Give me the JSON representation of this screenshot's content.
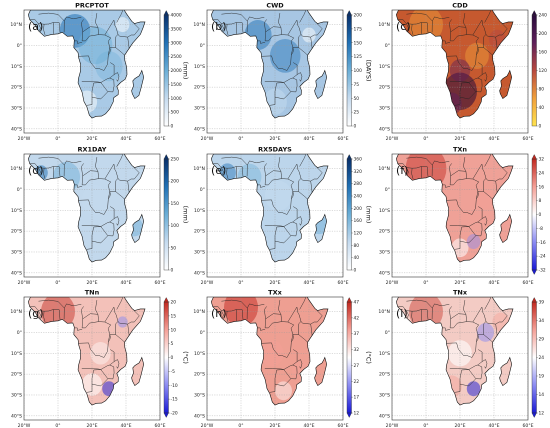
{
  "figure": {
    "lat_ticks": [
      "10°N",
      "0°",
      "10°S",
      "20°S",
      "30°S",
      "40°S"
    ],
    "lon_ticks": [
      "20°W",
      "0°",
      "20°E",
      "40°E",
      "60°E"
    ],
    "panels": [
      {
        "id": "prcptot",
        "title": "PRCPTOT",
        "label": "(a)",
        "unit": "(mm)",
        "colorbar": {
          "ticks": [
            "4000",
            "3500",
            "3000",
            "2500",
            "2000",
            "1500",
            "1000",
            "500",
            "0"
          ],
          "colors": [
            "#ffffff",
            "#c6dbef",
            "#6baed6",
            "#2171b5",
            "#08306b"
          ],
          "extend": "max"
        },
        "land_color": "#a9cae6"
      },
      {
        "id": "cwd",
        "title": "CWD",
        "label": "(b)",
        "unit": "(DAYS)",
        "colorbar": {
          "ticks": [
            "200",
            "175",
            "150",
            "125",
            "100",
            "75",
            "50",
            "25",
            "0"
          ],
          "colors": [
            "#ffffff",
            "#c6dbef",
            "#6baed6",
            "#2171b5",
            "#08306b"
          ],
          "extend": "max"
        },
        "land_color": "#a7c6e3"
      },
      {
        "id": "cdd",
        "title": "CDD",
        "label": "(c)",
        "unit": "(DAYS)",
        "colorbar": {
          "ticks": [
            "240",
            "200",
            "160",
            "120",
            "80",
            "40",
            "0"
          ],
          "colors": [
            "#ffe34d",
            "#f0a03c",
            "#b8493f",
            "#5e1f5a",
            "#2a0a3c"
          ],
          "extend": "max"
        },
        "land_color": "#c6592f"
      },
      {
        "id": "rx1day",
        "title": "RX1DAY",
        "label": "(d)",
        "unit": "(mm)",
        "colorbar": {
          "ticks": [
            "250",
            "200",
            "150",
            "100",
            "50",
            "0"
          ],
          "colors": [
            "#ffffff",
            "#c6dbef",
            "#6baed6",
            "#2171b5",
            "#08306b"
          ],
          "extend": "max"
        },
        "land_color": "#c2d8ec"
      },
      {
        "id": "rx5days",
        "title": "RX5DAYS",
        "label": "(e)",
        "unit": "(mm)",
        "colorbar": {
          "ticks": [
            "360",
            "320",
            "280",
            "240",
            "200",
            "160",
            "120",
            "80",
            "40",
            "0"
          ],
          "colors": [
            "#ffffff",
            "#c6dbef",
            "#6baed6",
            "#2171b5",
            "#08306b"
          ],
          "extend": "max"
        },
        "land_color": "#bcd5eb"
      },
      {
        "id": "txn",
        "title": "TXn",
        "label": "(f)",
        "unit": "(°C)",
        "colorbar": {
          "ticks": [
            "32",
            "24",
            "16",
            "8",
            "0",
            "-8",
            "-16",
            "-24",
            "-32"
          ],
          "colors": [
            "#1a1ad6",
            "#8b8bf2",
            "#ffffff",
            "#f4a097",
            "#c2281f"
          ],
          "extend": "both"
        },
        "land_color": "#efa197"
      },
      {
        "id": "tnn",
        "title": "TNn",
        "label": "(g)",
        "unit": "(°C)",
        "colorbar": {
          "ticks": [
            "20",
            "15",
            "10",
            "5",
            "0",
            "-5",
            "-10",
            "-15",
            "-20"
          ],
          "colors": [
            "#1a1ad6",
            "#8b8bf2",
            "#ffffff",
            "#f4a097",
            "#c2281f"
          ],
          "extend": "both"
        },
        "land_color": "#f3c1b9"
      },
      {
        "id": "txx",
        "title": "TXx",
        "label": "(h)",
        "unit": "(°C)",
        "colorbar": {
          "ticks": [
            "47",
            "42",
            "37",
            "32",
            "27",
            "22",
            "17",
            "12"
          ],
          "colors": [
            "#1a1ad6",
            "#8b8bf2",
            "#ffffff",
            "#f4a097",
            "#c2281f"
          ],
          "extend": "both"
        },
        "land_color": "#ee9f92"
      },
      {
        "id": "tnx",
        "title": "TNx",
        "label": "(i)",
        "unit": "(°C)",
        "colorbar": {
          "ticks": [
            "39",
            "34",
            "29",
            "24",
            "19",
            "14",
            "12"
          ],
          "colors": [
            "#1a1ad6",
            "#8b8bf2",
            "#ffffff",
            "#f4a097",
            "#c2281f"
          ],
          "extend": "both"
        },
        "land_color": "#f3cbc4"
      }
    ]
  }
}
